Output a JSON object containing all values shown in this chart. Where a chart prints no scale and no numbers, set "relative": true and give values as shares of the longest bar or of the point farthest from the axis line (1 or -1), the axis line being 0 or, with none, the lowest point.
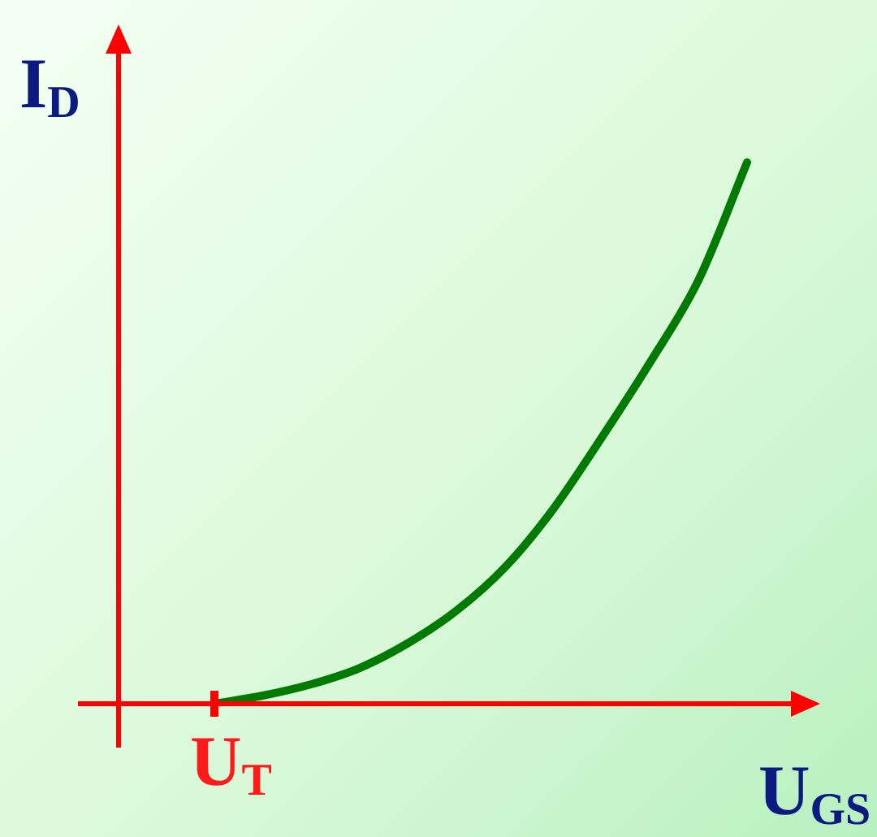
{
  "chart_data": {
    "type": "line",
    "relative": true,
    "xlabel": "U$_{GS}$",
    "ylabel": "I$_{D}$",
    "categories": [
      null,
      null,
      null,
      null,
      null,
      null,
      null,
      null,
      null,
      null,
      null,
      null
    ],
    "series": [
      {
        "color": "#007a00",
        "values": [
          0,
          0.015,
          0.036,
          0.066,
          0.112,
          0.172,
          0.252,
          0.36,
          0.492,
          0.631,
          0.783,
          1
        ]
      }
    ],
    "annotations": [
      "U$_{T}$"
    ]
  }
}
